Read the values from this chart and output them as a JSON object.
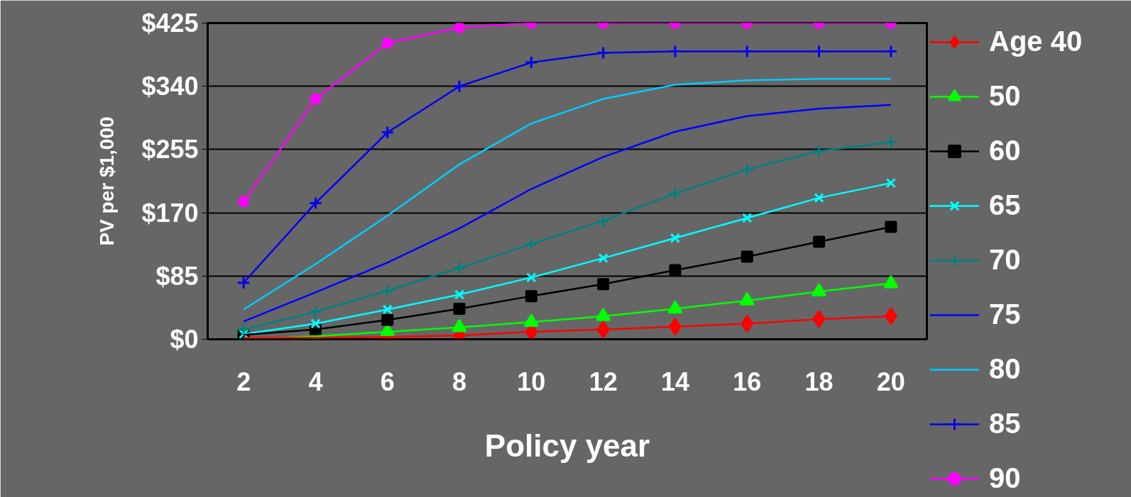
{
  "chart_data": {
    "type": "line",
    "xlabel": "Policy year",
    "ylabel": "PV per $1,000",
    "x": [
      2,
      4,
      6,
      8,
      10,
      12,
      14,
      16,
      18,
      20
    ],
    "xlim": [
      1,
      21
    ],
    "xticks": [
      2,
      4,
      6,
      8,
      10,
      12,
      14,
      16,
      18,
      20
    ],
    "ylim": [
      0,
      425
    ],
    "yticks": [
      {
        "value": 0,
        "label": "$0"
      },
      {
        "value": 85,
        "label": "$85"
      },
      {
        "value": 170,
        "label": "$170"
      },
      {
        "value": 255,
        "label": "$255"
      },
      {
        "value": 340,
        "label": "$340"
      },
      {
        "value": 425,
        "label": "$425"
      }
    ],
    "grid": "y",
    "legend": "right",
    "line_style": "solid",
    "series": [
      {
        "name": "Age 40",
        "color": "#ff0000",
        "marker": "diamond",
        "values": [
          2,
          2,
          3,
          5,
          10,
          13,
          17,
          21,
          27,
          31
        ]
      },
      {
        "name": "50",
        "color": "#00ff00",
        "marker": "triangle",
        "values": [
          0,
          4,
          10,
          16,
          23,
          31,
          41,
          52,
          64,
          75
        ]
      },
      {
        "name": "60",
        "color": "#000000",
        "marker": "square",
        "values": [
          6,
          13,
          26,
          41,
          58,
          74,
          93,
          111,
          131,
          151
        ]
      },
      {
        "name": "65",
        "color": "#00ffff",
        "marker": "x",
        "values": [
          7,
          21,
          40,
          60,
          83,
          109,
          136,
          163,
          190,
          210
        ]
      },
      {
        "name": "70",
        "color": "#008080",
        "marker": "cross",
        "values": [
          13,
          37,
          65,
          96,
          128,
          159,
          196,
          228,
          253,
          265
        ]
      },
      {
        "name": "75",
        "color": "#0000ff",
        "marker": "none",
        "values": [
          24,
          63,
          103,
          149,
          202,
          245,
          279,
          300,
          310,
          315
        ]
      },
      {
        "name": "80",
        "color": "#00ccff",
        "marker": "none",
        "values": [
          40,
          101,
          166,
          235,
          290,
          323,
          342,
          348,
          350,
          350
        ]
      },
      {
        "name": "85",
        "color": "#0000ee",
        "marker": "cross",
        "values": [
          76,
          183,
          278,
          340,
          372,
          385,
          387,
          387,
          387,
          387
        ]
      },
      {
        "name": "90",
        "color": "#ff00ff",
        "marker": "circle",
        "values": [
          185,
          323,
          398,
          419,
          425,
          425,
          425,
          425,
          425,
          425
        ]
      }
    ]
  }
}
